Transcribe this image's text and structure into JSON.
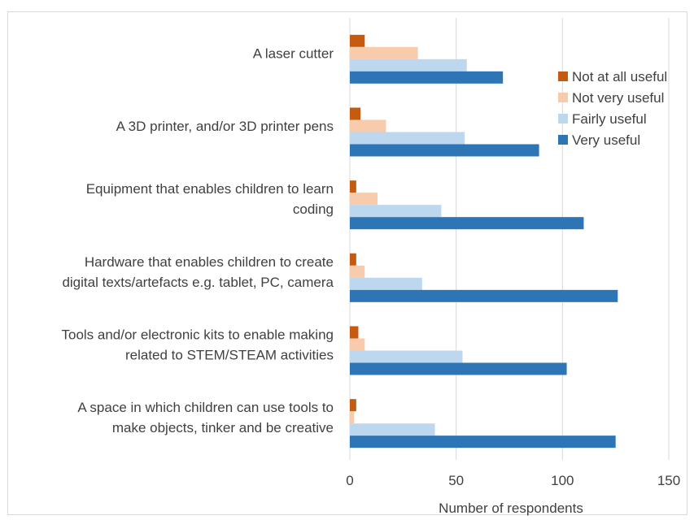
{
  "chart_data": {
    "type": "bar",
    "orientation": "horizontal",
    "categories": [
      [
        "A laser cutter"
      ],
      [
        "A 3D printer, and/or 3D printer pens"
      ],
      [
        "Equipment that enables children to learn",
        "coding"
      ],
      [
        "Hardware that enables children to create",
        "digital texts/artefacts e.g. tablet, PC, camera"
      ],
      [
        "Tools and/or electronic kits to enable making",
        "related to STEM/STEAM activities"
      ],
      [
        "A space in which children can use tools to",
        "make objects, tinker and be creative"
      ]
    ],
    "series": [
      {
        "name": "Not at all useful",
        "color": "#c55a11",
        "values": [
          7,
          5,
          3,
          3,
          4,
          3
        ]
      },
      {
        "name": "Not very useful",
        "color": "#f8cbad",
        "values": [
          32,
          17,
          13,
          7,
          7,
          2
        ]
      },
      {
        "name": "Fairly useful",
        "color": "#bdd7ee",
        "values": [
          55,
          54,
          43,
          34,
          53,
          40
        ]
      },
      {
        "name": "Very useful",
        "color": "#2e75b6",
        "values": [
          72,
          89,
          110,
          126,
          102,
          125
        ]
      }
    ],
    "xlabel": "Number of respondents",
    "xlim": [
      0,
      150
    ],
    "xticks": [
      0,
      50,
      100,
      150
    ],
    "grid": true,
    "legend_position": "right"
  }
}
